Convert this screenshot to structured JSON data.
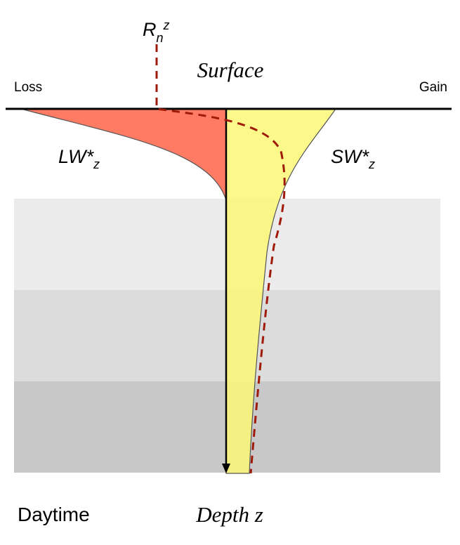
{
  "diagram": {
    "labels": {
      "loss": "Loss",
      "gain": "Gain",
      "surface": "Surface",
      "rn": "R",
      "rn_sub": "n",
      "rn_sup": "z",
      "lw": "LW*",
      "lw_sub": "z",
      "sw": "SW*",
      "sw_sub": "z",
      "depth": "Depth z",
      "time": "Daytime"
    },
    "colors": {
      "lw_fill": "#ff7b63",
      "sw_fill": "#fbf776",
      "rn_line": "#a01a0a",
      "band_1": "#ebebeb",
      "band_2": "#dcdcdc",
      "band_3": "#c8c8c8"
    }
  }
}
